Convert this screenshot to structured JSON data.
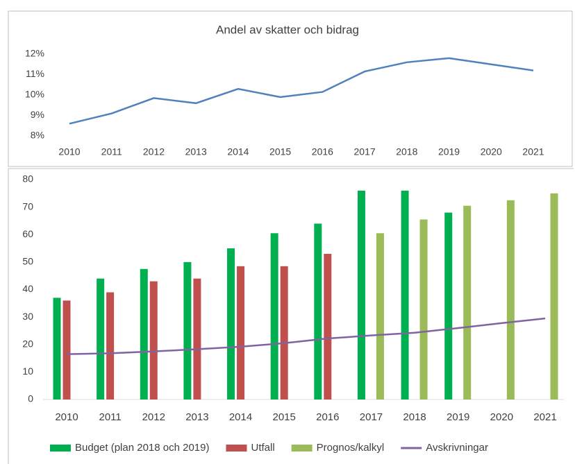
{
  "chart_data": [
    {
      "type": "line",
      "title": "Andel av skatter och bidrag",
      "categories": [
        "2010",
        "2011",
        "2012",
        "2013",
        "2014",
        "2015",
        "2016",
        "2017",
        "2018",
        "2019",
        "2020",
        "2021"
      ],
      "values": [
        8.6,
        9.1,
        9.85,
        9.6,
        10.3,
        9.9,
        10.15,
        11.15,
        11.6,
        11.8,
        11.5,
        11.2
      ],
      "color": "#4f81bd",
      "ylim": [
        8,
        12
      ],
      "yticks": [
        {
          "value": 8,
          "label": "8%"
        },
        {
          "value": 9,
          "label": "9%"
        },
        {
          "value": 10,
          "label": "10%"
        },
        {
          "value": 11,
          "label": "11%"
        },
        {
          "value": 12,
          "label": "12%"
        }
      ],
      "grid": false
    },
    {
      "type": "bar",
      "categories": [
        "2010",
        "2011",
        "2012",
        "2013",
        "2014",
        "2015",
        "2016",
        "2017",
        "2018",
        "2019",
        "2020",
        "2021"
      ],
      "series": [
        {
          "name": "Budget (plan 2018 och 2019)",
          "color": "#00b050",
          "values": [
            37,
            44,
            47.5,
            50,
            55,
            60.5,
            64,
            76,
            76,
            68,
            null,
            null
          ]
        },
        {
          "name": "Utfall",
          "color": "#c0504d",
          "values": [
            36,
            39,
            43,
            44,
            48.5,
            48.5,
            53,
            null,
            null,
            null,
            null,
            null
          ]
        },
        {
          "name": "Prognos/kalkyl",
          "color": "#9bbb59",
          "values": [
            null,
            null,
            null,
            null,
            null,
            null,
            null,
            60.5,
            65.5,
            70.5,
            72.5,
            75
          ]
        },
        {
          "name": "Avskrivningar",
          "color": "#8064a2",
          "type": "line",
          "values": [
            16.5,
            16.8,
            17.5,
            18.3,
            19.2,
            20.5,
            22.2,
            23.3,
            24.3,
            26,
            27.8,
            29.5
          ]
        }
      ],
      "ylim": [
        0,
        80
      ],
      "yticks": [
        0,
        10,
        20,
        30,
        40,
        50,
        60,
        70,
        80
      ],
      "grid": false,
      "legend": "bottom"
    }
  ]
}
